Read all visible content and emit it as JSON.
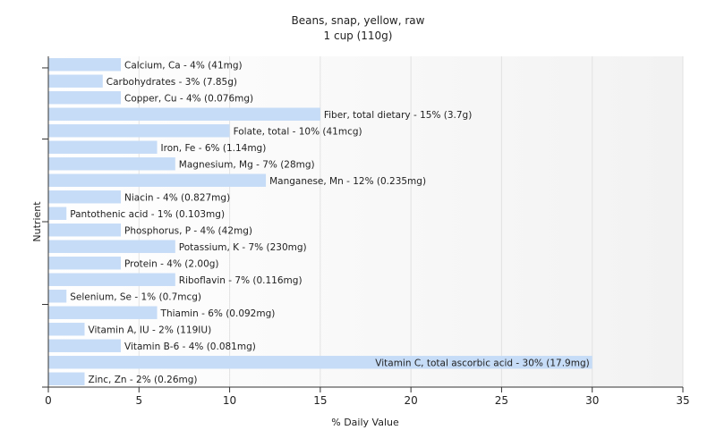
{
  "chart_data": {
    "type": "bar",
    "orientation": "horizontal",
    "title": "Beans, snap, yellow, raw",
    "subtitle": "1 cup (110g)",
    "xlabel": "% Daily Value",
    "ylabel": "Nutrient",
    "xlim": [
      0,
      35
    ],
    "xticks": [
      0,
      5,
      10,
      15,
      20,
      25,
      30,
      35
    ],
    "grid": true,
    "colors": {
      "bar": "#c6dcf7",
      "grid": "#e3e3e3",
      "axis": "#333333"
    },
    "bars": [
      {
        "label": "Calcium, Ca - 4% (41mg)",
        "value": 4
      },
      {
        "label": "Carbohydrates - 3% (7.85g)",
        "value": 3
      },
      {
        "label": "Copper, Cu - 4% (0.076mg)",
        "value": 4
      },
      {
        "label": "Fiber, total dietary - 15% (3.7g)",
        "value": 15
      },
      {
        "label": "Folate, total - 10% (41mcg)",
        "value": 10
      },
      {
        "label": "Iron, Fe - 6% (1.14mg)",
        "value": 6
      },
      {
        "label": "Magnesium, Mg - 7% (28mg)",
        "value": 7
      },
      {
        "label": "Manganese, Mn - 12% (0.235mg)",
        "value": 12
      },
      {
        "label": "Niacin - 4% (0.827mg)",
        "value": 4
      },
      {
        "label": "Pantothenic acid - 1% (0.103mg)",
        "value": 1
      },
      {
        "label": "Phosphorus, P - 4% (42mg)",
        "value": 4
      },
      {
        "label": "Potassium, K - 7% (230mg)",
        "value": 7
      },
      {
        "label": "Protein - 4% (2.00g)",
        "value": 4
      },
      {
        "label": "Riboflavin - 7% (0.116mg)",
        "value": 7
      },
      {
        "label": "Selenium, Se - 1% (0.7mcg)",
        "value": 1
      },
      {
        "label": "Thiamin - 6% (0.092mg)",
        "value": 6
      },
      {
        "label": "Vitamin A, IU - 2% (119IU)",
        "value": 2
      },
      {
        "label": "Vitamin B-6 - 4% (0.081mg)",
        "value": 4
      },
      {
        "label": "Vitamin C, total ascorbic acid - 30% (17.9mg)",
        "value": 30
      },
      {
        "label": "Zinc, Zn - 2% (0.26mg)",
        "value": 2
      }
    ]
  }
}
